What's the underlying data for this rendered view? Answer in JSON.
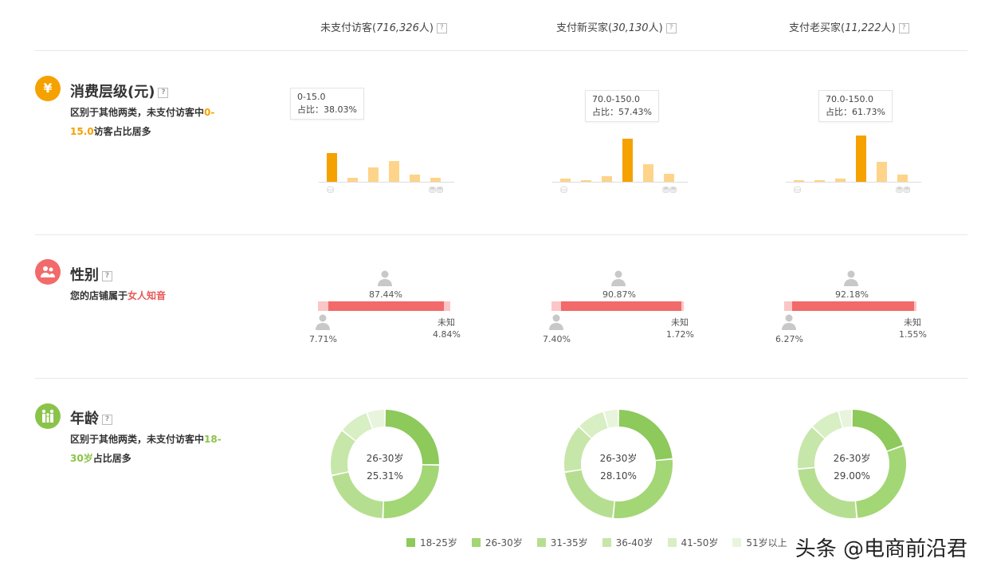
{
  "columns": [
    {
      "label": "未支付访客(",
      "count": "716,326",
      "suffix": "人)",
      "q": "?"
    },
    {
      "label": "支付新买家(",
      "count": "30,130",
      "suffix": "人)",
      "q": "?"
    },
    {
      "label": "支付老买家(",
      "count": "11,222",
      "suffix": "人)",
      "q": "?"
    }
  ],
  "sections": {
    "spend": {
      "icon": "¥",
      "title": "消费层级(元)",
      "q": "?",
      "desc_a": "区别于其他两类，未支付访客中",
      "desc_hl1": "0-",
      "desc_hl2": "15.0",
      "desc_b": "访客占比居多"
    },
    "gender": {
      "title": "性别",
      "q": "?",
      "desc_a": "您的店铺属于",
      "desc_hl": "女人知音"
    },
    "age": {
      "title": "年龄",
      "q": "?",
      "desc_a": "区别于其他两类，未支付访客中",
      "desc_hl1": "18-",
      "desc_hl2": "30岁",
      "desc_b": "占比居多"
    }
  },
  "spend_charts": [
    {
      "tip_range": "0-15.0",
      "tip_share": "占比：38.03%",
      "values": [
        38.03,
        5,
        19,
        28,
        10,
        5
      ],
      "highlight": 0
    },
    {
      "tip_range": "70.0-150.0",
      "tip_share": "占比：57.43%",
      "values": [
        4,
        2,
        8,
        57.43,
        24,
        11
      ],
      "highlight": 3
    },
    {
      "tip_range": "70.0-150.0",
      "tip_share": "占比：61.73%",
      "values": [
        2,
        2,
        4,
        61.73,
        27,
        10
      ],
      "highlight": 3
    }
  ],
  "gender_charts": [
    {
      "female": "87.44%",
      "male": "7.71%",
      "unknown_label": "未知",
      "unknown": "4.84%",
      "female_v": 87.44,
      "male_v": 7.71,
      "unknown_v": 4.84
    },
    {
      "female": "90.87%",
      "male": "7.40%",
      "unknown_label": "未知",
      "unknown": "1.72%",
      "female_v": 90.87,
      "male_v": 7.4,
      "unknown_v": 1.72
    },
    {
      "female": "92.18%",
      "male": "6.27%",
      "unknown_label": "未知",
      "unknown": "1.55%",
      "female_v": 92.18,
      "male_v": 6.27,
      "unknown_v": 1.55
    }
  ],
  "age_charts": [
    {
      "center_label": "26-30岁",
      "center_value": "25.31%",
      "values": [
        25.3,
        25.31,
        21.0,
        14.0,
        9.0,
        5.4
      ]
    },
    {
      "center_label": "26-30岁",
      "center_value": "28.10%",
      "values": [
        23.5,
        28.1,
        21.0,
        14.5,
        8.5,
        4.4
      ]
    },
    {
      "center_label": "26-30岁",
      "center_value": "29.00%",
      "values": [
        19.5,
        29.0,
        25.0,
        13.5,
        9.0,
        4.0
      ]
    }
  ],
  "age_legend": [
    {
      "label": "18-25岁",
      "color": "#8dc95b"
    },
    {
      "label": "26-30岁",
      "color": "#a3d675"
    },
    {
      "label": "31-35岁",
      "color": "#b6de90"
    },
    {
      "label": "36-40岁",
      "color": "#c7e6a9"
    },
    {
      "label": "41-50岁",
      "color": "#d8eec3"
    },
    {
      "label": "51岁以上",
      "color": "#e8f4dc"
    }
  ],
  "watermark": "头条 @电商前沿君",
  "colors": {
    "spend_highlight": "#f5a100",
    "spend_bar": "#fdd48a",
    "gender_female": "#f26a6a",
    "gender_male": "#fbc6c6",
    "gender_unknown": "#fbc6c6",
    "icon_spend": "#f5a100",
    "icon_gender": "#f26a6a",
    "icon_age": "#8bc34a"
  }
}
